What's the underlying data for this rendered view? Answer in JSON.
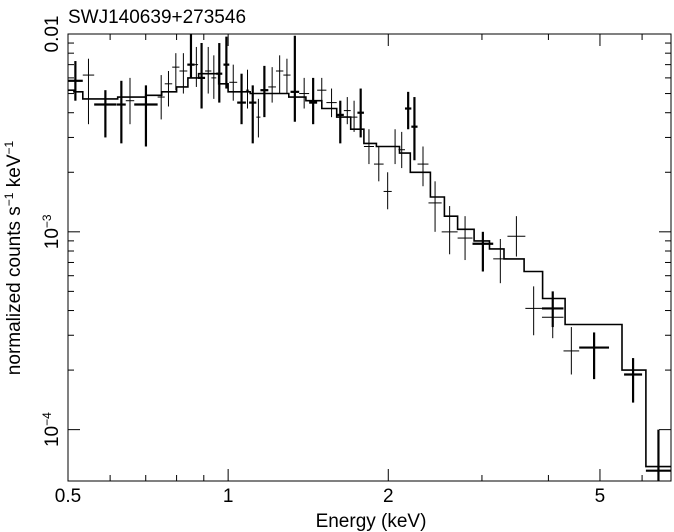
{
  "chart_data": {
    "type": "scatter",
    "title": "SWJ140639+273546",
    "xlabel": "Energy (keV)",
    "ylabel_text": "normalized counts s",
    "ylabel_exp1": "−1",
    "ylabel_mid": " keV",
    "ylabel_exp2": "−1",
    "xscale": "log",
    "yscale": "log",
    "xlim": [
      0.5,
      6.8
    ],
    "ylim": [
      5.5e-05,
      0.01
    ],
    "grid": false,
    "x_ticks": [
      {
        "value": 0.5,
        "label": "0.5"
      },
      {
        "value": 1,
        "label": "1"
      },
      {
        "value": 2,
        "label": "2"
      },
      {
        "value": 5,
        "label": "5"
      }
    ],
    "x_minor_ticks": [
      0.6,
      0.7,
      0.8,
      0.9,
      3,
      4,
      6
    ],
    "y_ticks": [
      {
        "value": 0.01,
        "label": "0.01",
        "base": "",
        "exp": ""
      },
      {
        "value": 0.001,
        "label": "",
        "base": "10",
        "exp": "−3"
      },
      {
        "value": 0.0001,
        "label": "",
        "base": "10",
        "exp": "−4"
      }
    ],
    "y_minor_ticks": [
      0.0002,
      0.0003,
      0.0004,
      0.0005,
      0.0006,
      0.0007,
      0.0008,
      0.0009,
      0.002,
      0.003,
      0.004,
      0.005,
      0.006,
      0.007,
      0.008,
      0.009
    ],
    "series": [
      {
        "style": "thick",
        "points": [
          {
            "x0": 0.5,
            "x1": 0.533,
            "y": 0.0058,
            "ylo": 0.0046,
            "yhi": 0.0073
          },
          {
            "x0": 0.56,
            "x1": 0.617,
            "y": 0.0044,
            "ylo": 0.003,
            "yhi": 0.0052
          },
          {
            "x0": 0.618,
            "x1": 0.642,
            "y": 0.0044,
            "ylo": 0.0028,
            "yhi": 0.0058
          },
          {
            "x0": 0.666,
            "x1": 0.737,
            "y": 0.0044,
            "ylo": 0.0027,
            "yhi": 0.0055
          },
          {
            "x0": 0.838,
            "x1": 0.865,
            "y": 0.007,
            "ylo": 0.006,
            "yhi": 0.01
          },
          {
            "x0": 0.878,
            "x1": 0.905,
            "y": 0.006,
            "ylo": 0.0042,
            "yhi": 0.009
          },
          {
            "x0": 0.95,
            "x1": 0.975,
            "y": 0.0063,
            "ylo": 0.0045,
            "yhi": 0.009
          },
          {
            "x0": 0.98,
            "x1": 1.005,
            "y": 0.007,
            "ylo": 0.0053,
            "yhi": 0.0097
          },
          {
            "x0": 1.04,
            "x1": 1.08,
            "y": 0.0045,
            "ylo": 0.0035,
            "yhi": 0.0063
          },
          {
            "x0": 1.095,
            "x1": 1.13,
            "y": 0.0045,
            "ylo": 0.0028,
            "yhi": 0.0055
          },
          {
            "x0": 1.15,
            "x1": 1.19,
            "y": 0.0052,
            "ylo": 0.0038,
            "yhi": 0.0069
          },
          {
            "x0": 1.31,
            "x1": 1.36,
            "y": 0.0051,
            "ylo": 0.0036,
            "yhi": 0.0098
          },
          {
            "x0": 1.42,
            "x1": 1.47,
            "y": 0.0045,
            "ylo": 0.0035,
            "yhi": 0.006
          },
          {
            "x0": 1.6,
            "x1": 1.65,
            "y": 0.0039,
            "ylo": 0.0028,
            "yhi": 0.0046
          },
          {
            "x0": 1.75,
            "x1": 1.8,
            "y": 0.004,
            "ylo": 0.003,
            "yhi": 0.0053
          },
          {
            "x0": 2.15,
            "x1": 2.21,
            "y": 0.0042,
            "ylo": 0.0033,
            "yhi": 0.0051
          },
          {
            "x0": 2.21,
            "x1": 2.27,
            "y": 0.0034,
            "ylo": 0.0023,
            "yhi": 0.0048
          },
          {
            "x0": 2.88,
            "x1": 3.15,
            "y": 0.00087,
            "ylo": 0.00063,
            "yhi": 0.001
          },
          {
            "x0": 3.89,
            "x1": 4.27,
            "y": 0.00041,
            "ylo": 0.00033,
            "yhi": 0.0005
          },
          {
            "x0": 4.57,
            "x1": 5.2,
            "y": 0.00026,
            "ylo": 0.00018,
            "yhi": 0.00031
          },
          {
            "x0": 5.55,
            "x1": 6.0,
            "y": 0.00019,
            "ylo": 0.000137,
            "yhi": 0.00023
          },
          {
            "x0": 6.1,
            "x1": 6.8,
            "y": 6.2e-05,
            "ylo": 5.5e-05,
            "yhi": 0.0001
          }
        ]
      },
      {
        "style": "thin",
        "points": [
          {
            "x0": 0.533,
            "x1": 0.56,
            "y": 0.0062,
            "ylo": 0.0035,
            "yhi": 0.0075
          },
          {
            "x0": 0.642,
            "x1": 0.666,
            "y": 0.0046,
            "ylo": 0.0035,
            "yhi": 0.006
          },
          {
            "x0": 0.737,
            "x1": 0.76,
            "y": 0.0048,
            "ylo": 0.0037,
            "yhi": 0.0062
          },
          {
            "x0": 0.76,
            "x1": 0.785,
            "y": 0.0056,
            "ylo": 0.0043,
            "yhi": 0.0065
          },
          {
            "x0": 0.785,
            "x1": 0.81,
            "y": 0.0068,
            "ylo": 0.0052,
            "yhi": 0.008
          },
          {
            "x0": 0.81,
            "x1": 0.838,
            "y": 0.0065,
            "ylo": 0.005,
            "yhi": 0.008
          },
          {
            "x0": 0.865,
            "x1": 0.878,
            "y": 0.007,
            "ylo": 0.0054,
            "yhi": 0.0086
          },
          {
            "x0": 0.905,
            "x1": 0.93,
            "y": 0.0065,
            "ylo": 0.005,
            "yhi": 0.0086
          },
          {
            "x0": 0.93,
            "x1": 0.95,
            "y": 0.006,
            "ylo": 0.0047,
            "yhi": 0.0078
          },
          {
            "x0": 1.005,
            "x1": 1.04,
            "y": 0.0057,
            "ylo": 0.0046,
            "yhi": 0.007
          },
          {
            "x0": 1.08,
            "x1": 1.095,
            "y": 0.0052,
            "ylo": 0.0042,
            "yhi": 0.0066
          },
          {
            "x0": 1.13,
            "x1": 1.15,
            "y": 0.0038,
            "ylo": 0.003,
            "yhi": 0.0047
          },
          {
            "x0": 1.19,
            "x1": 1.23,
            "y": 0.0054,
            "ylo": 0.0045,
            "yhi": 0.0068
          },
          {
            "x0": 1.23,
            "x1": 1.27,
            "y": 0.0065,
            "ylo": 0.005,
            "yhi": 0.0078
          },
          {
            "x0": 1.27,
            "x1": 1.31,
            "y": 0.0062,
            "ylo": 0.005,
            "yhi": 0.0075
          },
          {
            "x0": 1.36,
            "x1": 1.42,
            "y": 0.005,
            "ylo": 0.0042,
            "yhi": 0.006
          },
          {
            "x0": 1.47,
            "x1": 1.53,
            "y": 0.0052,
            "ylo": 0.0043,
            "yhi": 0.006
          },
          {
            "x0": 1.53,
            "x1": 1.6,
            "y": 0.0045,
            "ylo": 0.0038,
            "yhi": 0.0053
          },
          {
            "x0": 1.65,
            "x1": 1.7,
            "y": 0.0041,
            "ylo": 0.0035,
            "yhi": 0.0048
          },
          {
            "x0": 1.7,
            "x1": 1.75,
            "y": 0.0038,
            "ylo": 0.0032,
            "yhi": 0.0046
          },
          {
            "x0": 1.8,
            "x1": 1.88,
            "y": 0.0027,
            "ylo": 0.0022,
            "yhi": 0.0033
          },
          {
            "x0": 1.88,
            "x1": 1.96,
            "y": 0.0022,
            "ylo": 0.0018,
            "yhi": 0.0027
          },
          {
            "x0": 1.96,
            "x1": 2.03,
            "y": 0.0016,
            "ylo": 0.0013,
            "yhi": 0.002
          },
          {
            "x0": 2.03,
            "x1": 2.09,
            "y": 0.0027,
            "ylo": 0.0022,
            "yhi": 0.0033
          },
          {
            "x0": 2.09,
            "x1": 2.15,
            "y": 0.0026,
            "ylo": 0.0021,
            "yhi": 0.0032
          },
          {
            "x0": 2.27,
            "x1": 2.38,
            "y": 0.0022,
            "ylo": 0.0017,
            "yhi": 0.0027
          },
          {
            "x0": 2.38,
            "x1": 2.52,
            "y": 0.0014,
            "ylo": 0.001,
            "yhi": 0.0018
          },
          {
            "x0": 2.52,
            "x1": 2.7,
            "y": 0.001,
            "ylo": 0.00077,
            "yhi": 0.00135
          },
          {
            "x0": 2.7,
            "x1": 2.88,
            "y": 0.00093,
            "ylo": 0.00072,
            "yhi": 0.0012
          },
          {
            "x0": 3.15,
            "x1": 3.35,
            "y": 0.00073,
            "ylo": 0.00055,
            "yhi": 0.00092
          },
          {
            "x0": 3.35,
            "x1": 3.62,
            "y": 0.00095,
            "ylo": 0.00075,
            "yhi": 0.0012
          },
          {
            "x0": 3.62,
            "x1": 3.89,
            "y": 0.00041,
            "ylo": 0.0003,
            "yhi": 0.00053
          },
          {
            "x0": 3.89,
            "x1": 4.27,
            "y": 0.00037,
            "ylo": 0.00029,
            "yhi": 0.00048
          },
          {
            "x0": 4.27,
            "x1": 4.57,
            "y": 0.00025,
            "ylo": 0.00019,
            "yhi": 0.00033
          }
        ]
      }
    ],
    "model_steps": [
      {
        "x0": 0.5,
        "x1": 0.513,
        "y": 0.0052
      },
      {
        "x0": 0.513,
        "x1": 0.533,
        "y": 0.0051
      },
      {
        "x0": 0.533,
        "x1": 0.62,
        "y": 0.0047
      },
      {
        "x0": 0.62,
        "x1": 0.7,
        "y": 0.0048
      },
      {
        "x0": 0.7,
        "x1": 0.75,
        "y": 0.0049
      },
      {
        "x0": 0.75,
        "x1": 0.8,
        "y": 0.0051
      },
      {
        "x0": 0.8,
        "x1": 0.84,
        "y": 0.0054
      },
      {
        "x0": 0.84,
        "x1": 0.88,
        "y": 0.006
      },
      {
        "x0": 0.88,
        "x1": 0.96,
        "y": 0.0063
      },
      {
        "x0": 0.96,
        "x1": 1.0,
        "y": 0.0056
      },
      {
        "x0": 1.0,
        "x1": 1.1,
        "y": 0.0051
      },
      {
        "x0": 1.1,
        "x1": 1.2,
        "y": 0.005
      },
      {
        "x0": 1.2,
        "x1": 1.3,
        "y": 0.005
      },
      {
        "x0": 1.3,
        "x1": 1.4,
        "y": 0.0048
      },
      {
        "x0": 1.4,
        "x1": 1.5,
        "y": 0.0046
      },
      {
        "x0": 1.5,
        "x1": 1.6,
        "y": 0.0042
      },
      {
        "x0": 1.6,
        "x1": 1.7,
        "y": 0.0038
      },
      {
        "x0": 1.7,
        "x1": 1.8,
        "y": 0.0033
      },
      {
        "x0": 1.8,
        "x1": 1.9,
        "y": 0.0028
      },
      {
        "x0": 1.9,
        "x1": 2.0,
        "y": 0.0027
      },
      {
        "x0": 2.0,
        "x1": 2.1,
        "y": 0.0027
      },
      {
        "x0": 2.1,
        "x1": 2.2,
        "y": 0.0025
      },
      {
        "x0": 2.2,
        "x1": 2.4,
        "y": 0.002
      },
      {
        "x0": 2.4,
        "x1": 2.55,
        "y": 0.0015
      },
      {
        "x0": 2.55,
        "x1": 2.7,
        "y": 0.0012
      },
      {
        "x0": 2.7,
        "x1": 2.9,
        "y": 0.00103
      },
      {
        "x0": 2.9,
        "x1": 3.1,
        "y": 0.0009
      },
      {
        "x0": 3.1,
        "x1": 3.3,
        "y": 0.00082
      },
      {
        "x0": 3.3,
        "x1": 3.6,
        "y": 0.00073
      },
      {
        "x0": 3.6,
        "x1": 3.9,
        "y": 0.00063
      },
      {
        "x0": 3.9,
        "x1": 4.3,
        "y": 0.00046
      },
      {
        "x0": 4.3,
        "x1": 5.5,
        "y": 0.00034
      },
      {
        "x0": 5.5,
        "x1": 6.1,
        "y": 0.0002
      },
      {
        "x0": 6.1,
        "x1": 6.8,
        "y": 6.5e-05
      }
    ]
  }
}
